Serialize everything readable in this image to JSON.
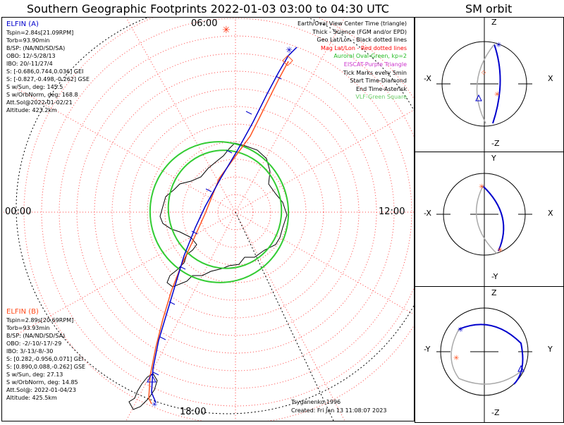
{
  "header": {
    "title": "Southern Geographic Footprints 2022-01-03 03:00 to 04:30 UTC",
    "sm_title": "SM orbit"
  },
  "mlt_labels": {
    "top": "06:00",
    "left": "00:00",
    "right": "12:00",
    "bottom": "18:00"
  },
  "elfin_a": {
    "name": "ELFIN (A)",
    "color": "#0000cc",
    "lines": [
      "Tspin=2.84s[21.09RPM]",
      "Torb=93.90min",
      "B/SP: (NA/ND/SD/SA)",
      "OBO: 12/-5/28/13",
      "IBO: 20/-11/27/4",
      "S: [-0.686,0.744,0.036] GEI",
      "S: [-0.827,-0.498,-0.262] GSE",
      "S w/Sun, deg: 145.5",
      "S w/OrbNorm, deg: 168.8",
      "Att.Sol@2022-01-02/21",
      "Altitude: 423.2km"
    ]
  },
  "elfin_b": {
    "name": "ELFIN (B)",
    "color": "#ff4a1a",
    "lines": [
      "Tspin=2.89s[20.69RPM]",
      "Torb=93.93min",
      "B/SP: (NA/ND/SD/SA)",
      "OBO: -2/-10/-17/-29",
      "IBO: 3/-13/-8/-30",
      "S: [0.282,-0.956,0.071] GEI",
      "S: [0.890,0.088,-0.262] GSE",
      "S w/Sun, deg: 27.13",
      "S w/OrbNorm, deg: 14.85",
      "Att.Sol@: 2022-01-04/23",
      "Altitude: 425.5km"
    ]
  },
  "legend": [
    {
      "text": "Earth/Oval View Center Time (triangle)",
      "color": "#000000"
    },
    {
      "text": "Thick - Science (FGM and/or EPD)",
      "color": "#000000"
    },
    {
      "text": "Geo Lat/Lon - Black dotted lines",
      "color": "#000000"
    },
    {
      "text": "Mag Lat/Lon - Red dotted lines",
      "color": "#ff0000"
    },
    {
      "text": "Auroral Oval-Green, kp=2",
      "color": "#22bb22"
    },
    {
      "text": "EISCAT-Purple Triangle",
      "color": "#cc33cc"
    },
    {
      "text": "Tick Marks every 5min",
      "color": "#000000"
    },
    {
      "text": "Start Time-Diamond",
      "color": "#000000"
    },
    {
      "text": "End Time-Asterisk",
      "color": "#000000"
    },
    {
      "text": "VLF-Green Square",
      "color": "#66cc66"
    }
  ],
  "footer": {
    "model": "Tsyganenko-1996",
    "created": "Created: Fri Jan 13 11:08:07 2023"
  },
  "sm_panels": [
    {
      "top": "Z",
      "bottom": "-Z",
      "left": "-X",
      "right": "X"
    },
    {
      "top": "Y",
      "bottom": "-Y",
      "left": "-X",
      "right": "X"
    },
    {
      "top": "Z",
      "bottom": "-Z",
      "left": "-Y",
      "right": "Y"
    }
  ]
}
